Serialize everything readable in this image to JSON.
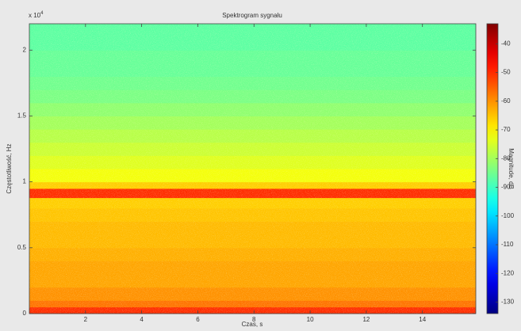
{
  "chart_data": {
    "type": "heatmap",
    "title": "Spektrogram sygnału",
    "x_label": "Czas, s",
    "y_label": "Częstotliwość, Hz",
    "y_scale_base": "x 10",
    "y_scale_exponent": "4",
    "colorbar_label": "Magnitude, dB",
    "xlim": [
      0,
      15.9
    ],
    "xticks": [
      2,
      4,
      6,
      8,
      10,
      12,
      14
    ],
    "ylim": [
      0,
      2.2
    ],
    "yticks": [
      0,
      0.5,
      1,
      1.5,
      2
    ],
    "y_edges": [
      0,
      0.05,
      0.1,
      0.2,
      0.3,
      0.4,
      0.5,
      0.6,
      0.7,
      0.8,
      0.88,
      0.95,
      1.0,
      1.1,
      1.2,
      1.3,
      1.4,
      1.5,
      1.6,
      1.7,
      1.8,
      1.9,
      2.0,
      2.1,
      2.2
    ],
    "values": [
      -50,
      -57,
      -60,
      -62,
      -62,
      -63,
      -64,
      -64,
      -65,
      -66,
      -50,
      -66,
      -72,
      -74,
      -76,
      -78,
      -80,
      -82,
      -84,
      -85,
      -86,
      -86,
      -87,
      -87
    ],
    "clim": [
      -134,
      -33
    ],
    "cticks": [
      -40,
      -50,
      -60,
      -70,
      -80,
      -90,
      -100,
      -110,
      -120,
      -130
    ],
    "colormap": "jet"
  }
}
